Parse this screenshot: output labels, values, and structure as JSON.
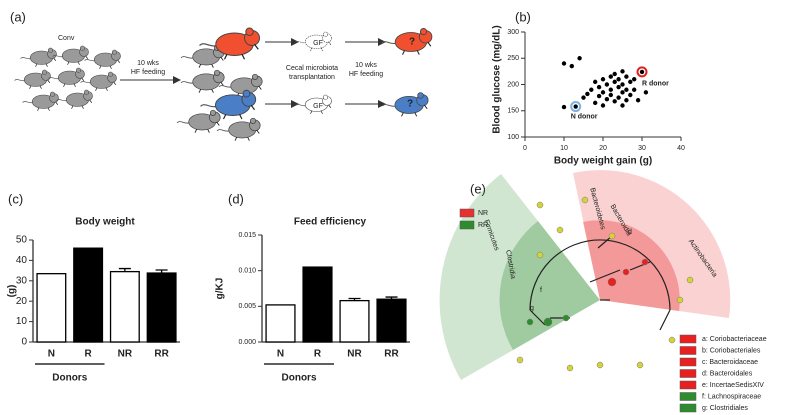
{
  "schematic": {
    "panel": "(a)",
    "start_label": "Conv",
    "feeding_1": [
      "10 wks",
      "HF feeding"
    ],
    "gf": [
      "GF",
      "GF"
    ],
    "transplant": [
      "Cecal microbiota",
      "transplantation"
    ],
    "feeding_2": [
      "10 wks",
      "HF feeding"
    ],
    "outcome": [
      "?",
      "?"
    ]
  },
  "chart_data": [
    {
      "type": "scatter",
      "panel": "(b)",
      "xlabel": "Body weight gain  (g)",
      "ylabel": "Blood glucose (mg/dL)",
      "x": [
        10,
        12,
        14,
        10,
        13,
        15,
        16,
        17,
        18,
        18,
        19,
        19,
        20,
        20,
        20,
        21,
        21,
        22,
        22,
        22,
        23,
        23,
        23,
        24,
        24,
        24,
        25,
        25,
        25,
        25,
        26,
        26,
        26,
        27,
        27,
        28,
        28,
        30,
        31,
        29
      ],
      "values": [
        240,
        235,
        250,
        157,
        158,
        175,
        182,
        190,
        205,
        165,
        195,
        178,
        210,
        185,
        160,
        200,
        172,
        215,
        190,
        180,
        220,
        205,
        168,
        210,
        195,
        175,
        225,
        200,
        185,
        160,
        215,
        190,
        170,
        205,
        180,
        210,
        190,
        224,
        185,
        170
      ],
      "color": "#000000",
      "annotations": [
        {
          "text": "N donor",
          "x": 13,
          "y": 158,
          "color": "#7fb2e0"
        },
        {
          "text": "R donor",
          "x": 30,
          "y": 224,
          "color": "#e02020"
        }
      ],
      "xlim": [
        0,
        40
      ],
      "xticks": [
        0,
        10,
        20,
        30,
        40
      ],
      "ylim": [
        100,
        300
      ],
      "yticks": [
        100,
        150,
        200,
        250,
        300
      ]
    },
    {
      "type": "bar",
      "panel": "(c)",
      "title": "Body weight",
      "ylabel": "(g)",
      "group_label": "Donors",
      "categories": [
        "N",
        "R",
        "NR",
        "RR"
      ],
      "values": [
        33.5,
        46,
        34.5,
        33.8
      ],
      "errors": [
        0,
        0,
        1.5,
        1.5
      ],
      "colors": [
        "#ffffff",
        "#000000",
        "#ffffff",
        "#000000"
      ],
      "ylim": [
        0,
        50
      ],
      "yticks": [
        0,
        10,
        20,
        30,
        40,
        50
      ]
    },
    {
      "type": "bar",
      "panel": "(d)",
      "title": "Feed efficiency",
      "ylabel": "g/KJ",
      "group_label": "Donors",
      "categories": [
        "N",
        "R",
        "NR",
        "RR"
      ],
      "values": [
        0.0052,
        0.0105,
        0.0058,
        0.006
      ],
      "errors": [
        0,
        0,
        0.0003,
        0.0003
      ],
      "colors": [
        "#ffffff",
        "#000000",
        "#ffffff",
        "#000000"
      ],
      "ylim": [
        0,
        0.015
      ],
      "yticks": [
        {
          "value": 0,
          "label": "0.000"
        },
        {
          "value": 0.005,
          "label": "0.005"
        },
        {
          "value": 0.01,
          "label": "0.010"
        },
        {
          "value": 0.015,
          "label": "0.015"
        }
      ]
    }
  ],
  "cladogram": {
    "panel": "(e)",
    "groups": [
      {
        "name": "NR",
        "color": "#e83030"
      },
      {
        "name": "RR",
        "color": "#2e8b2e"
      }
    ],
    "clade_labels": [
      "Bacteroidetes",
      "Bacteroidia",
      "d",
      "Actinobacteria",
      "Firmicutes",
      "Clostridia",
      "f",
      "g"
    ],
    "taxa": [
      {
        "label": "a: Coriobacteriaceae",
        "color": "#e82020"
      },
      {
        "label": "b: Coriobacteriales",
        "color": "#e82020"
      },
      {
        "label": "c: Bacteroidaceae",
        "color": "#e82020"
      },
      {
        "label": "d: Bacteroidales",
        "color": "#e82020"
      },
      {
        "label": "e: IncertaeSedisXIV",
        "color": "#e82020"
      },
      {
        "label": "f: Lachnospiraceae",
        "color": "#2e8b2e"
      },
      {
        "label": "g: Clostridiales",
        "color": "#2e8b2e"
      }
    ]
  }
}
